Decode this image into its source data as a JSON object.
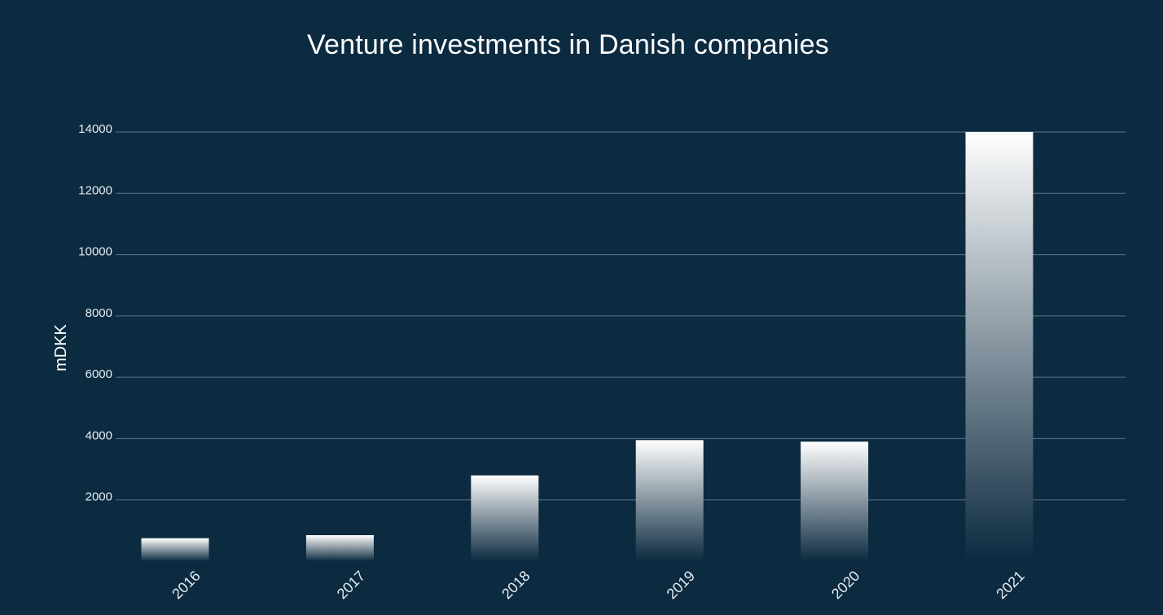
{
  "chart_data": {
    "type": "bar",
    "title": "Venture investments in Danish companies",
    "xlabel": "",
    "ylabel": "mDKK",
    "categories": [
      "2016",
      "2017",
      "2018",
      "2019",
      "2020",
      "2021"
    ],
    "values": [
      750,
      850,
      2800,
      3950,
      3900,
      14000
    ],
    "yticks": [
      "2000",
      "4000",
      "6000",
      "8000",
      "10000",
      "12000",
      "14000"
    ],
    "ylim": [
      0,
      14000
    ],
    "grid": true,
    "legend": "none",
    "colors": {
      "background": "#0c2a40",
      "bar_top": "#ffffff",
      "bar_bottom": "#0c2a40",
      "grid": "#5d7588",
      "text": "#ffffff"
    }
  }
}
